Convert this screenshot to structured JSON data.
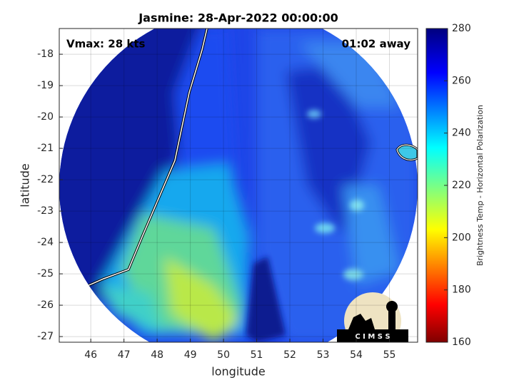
{
  "chart_data": {
    "type": "map",
    "title": "Jasmine: 28-Apr-2022 00:00:00",
    "annotations": [
      "Vmax: 28 kts",
      "01:02 away"
    ],
    "x_label": "longitude",
    "y_label": "latitude",
    "xlim": [
      45.05,
      55.85
    ],
    "xticks": [
      46,
      47,
      48,
      49,
      50,
      51,
      52,
      53,
      54,
      55
    ],
    "ylim": [
      -27.18,
      -17.18
    ],
    "yticks": [
      -18,
      -19,
      -20,
      -21,
      -22,
      -23,
      -24,
      -25,
      -26,
      -27
    ],
    "grid": true,
    "colorbar": {
      "label": "Brightness Temp - Horizontal Polarization",
      "clim": [
        160,
        280
      ],
      "ticks": [
        160,
        180,
        200,
        220,
        240,
        260,
        280
      ]
    },
    "logo_text": "C I M S S"
  }
}
